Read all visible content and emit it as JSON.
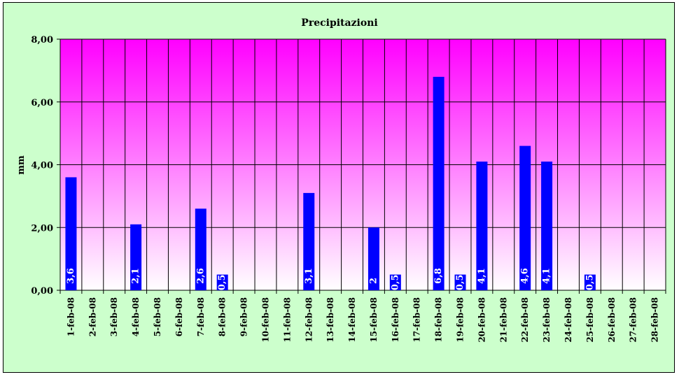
{
  "chart_data": {
    "type": "bar",
    "title": "Precipitazioni",
    "xlabel": "",
    "ylabel": "mm",
    "ylim": [
      0,
      8
    ],
    "yticks": [
      "0,00",
      "2,00",
      "4,00",
      "6,00",
      "8,00"
    ],
    "grid": true,
    "legend": "none",
    "bar_color": "#0000ff",
    "plot_gradient": [
      "#ff00ff",
      "#ffffff"
    ],
    "background": "#ccffcc",
    "categories": [
      "1-feb-08",
      "2-feb-08",
      "3-feb-08",
      "4-feb-08",
      "5-feb-08",
      "6-feb-08",
      "7-feb-08",
      "8-feb-08",
      "9-feb-08",
      "10-feb-08",
      "11-feb-08",
      "12-feb-08",
      "13-feb-08",
      "14-feb-08",
      "15-feb-08",
      "16-feb-08",
      "17-feb-08",
      "18-feb-08",
      "19-feb-08",
      "20-feb-08",
      "21-feb-08",
      "22-feb-08",
      "23-feb-08",
      "24-feb-08",
      "25-feb-08",
      "26-feb-08",
      "27-feb-08",
      "28-feb-08"
    ],
    "values": [
      3.6,
      0,
      0,
      2.1,
      0,
      0,
      2.6,
      0.5,
      0,
      0,
      0,
      3.1,
      0,
      0,
      2,
      0.5,
      0,
      6.8,
      0.5,
      4.1,
      0,
      4.6,
      4.1,
      0,
      0.5,
      0,
      0,
      0
    ],
    "data_labels": [
      "3,6",
      "",
      "",
      "2,1",
      "",
      "",
      "2,6",
      "0,5",
      "",
      "",
      "",
      "3,1",
      "",
      "",
      "2",
      "0,5",
      "",
      "6,8",
      "0,5",
      "4,1",
      "",
      "4,6",
      "4,1",
      "",
      "0,5",
      "",
      "",
      ""
    ]
  }
}
